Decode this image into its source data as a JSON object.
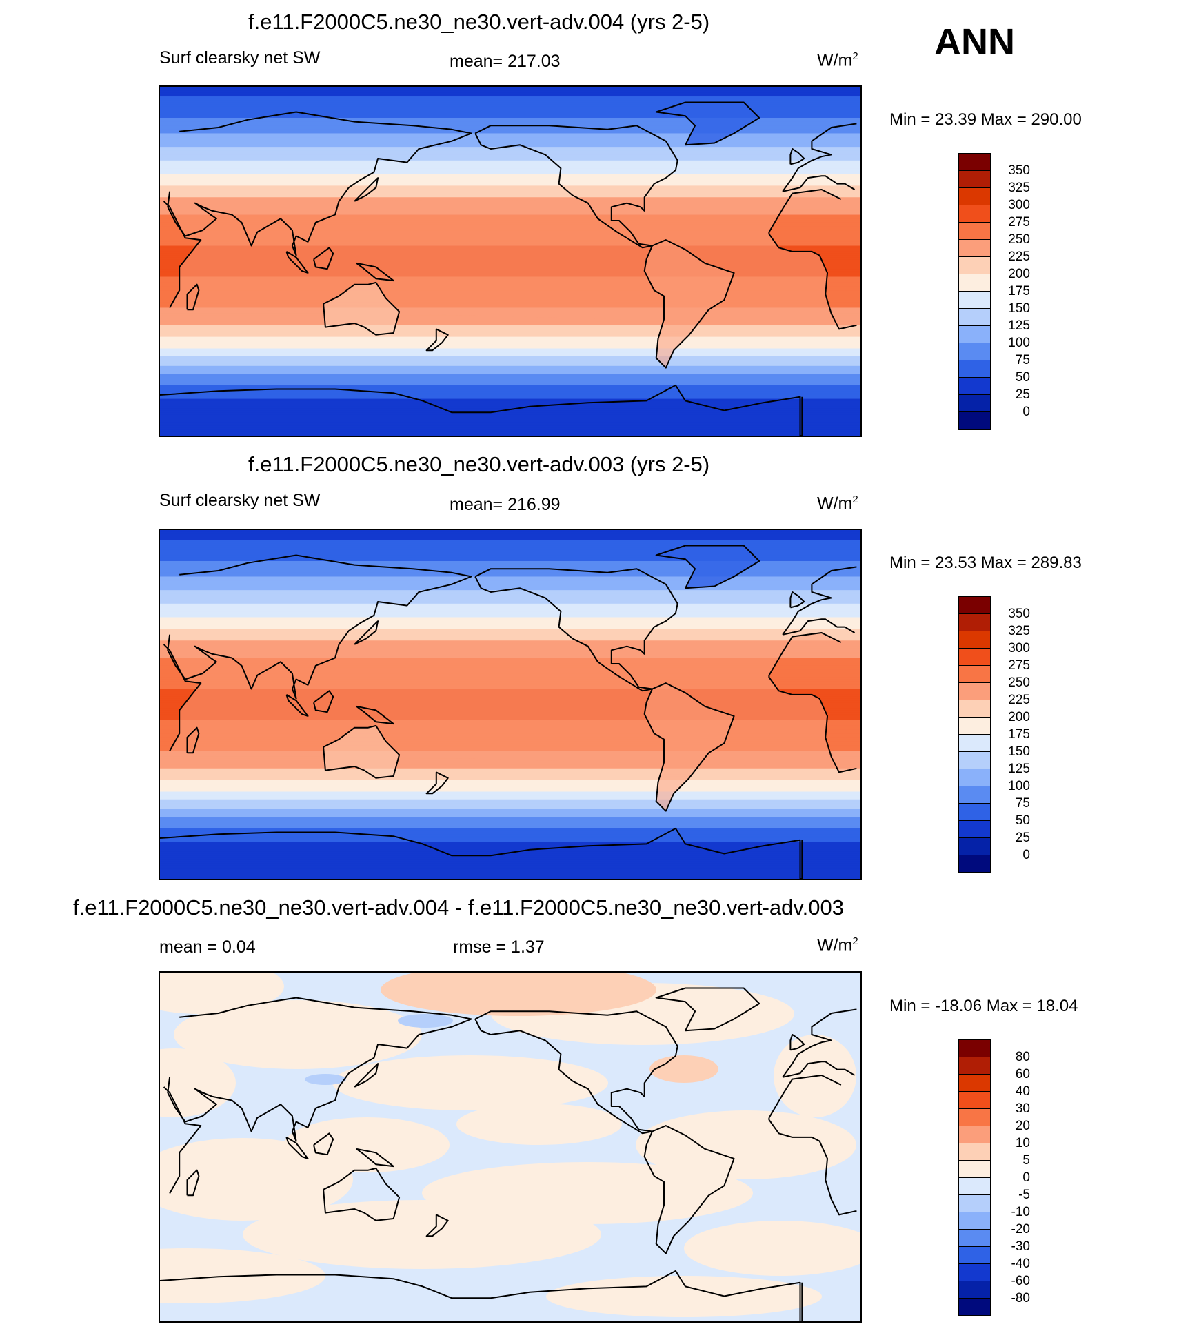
{
  "header": {
    "season": "ANN"
  },
  "panels": [
    {
      "title": "f.e11.F2000C5.ne30_ne30.vert-adv.004 (yrs 2-5)",
      "left_label": "Surf clearsky net SW",
      "mid_label": "mean= 217.03",
      "units": "W/m",
      "units_sup": "2",
      "minmax": "Min =  23.39 Max = 290.00",
      "colorbar": "abs"
    },
    {
      "title": "f.e11.F2000C5.ne30_ne30.vert-adv.003 (yrs 2-5)",
      "left_label": "Surf clearsky net SW",
      "mid_label": "mean= 216.99",
      "units": "W/m",
      "units_sup": "2",
      "minmax": "Min =  23.53 Max = 289.83",
      "colorbar": "abs"
    },
    {
      "title": "f.e11.F2000C5.ne30_ne30.vert-adv.004 - f.e11.F2000C5.ne30_ne30.vert-adv.003",
      "left_label": "mean =   0.04",
      "mid_label": "rmse =   1.37",
      "units": "W/m",
      "units_sup": "2",
      "minmax": "Min = -18.06 Max =  18.04",
      "colorbar": "diff"
    }
  ],
  "colorbars": {
    "abs": {
      "levels": [
        "350",
        "325",
        "300",
        "275",
        "250",
        "225",
        "200",
        "175",
        "150",
        "125",
        "100",
        "75",
        "50",
        "25",
        "0"
      ],
      "colors": [
        "#7a0000",
        "#b01e05",
        "#db3800",
        "#f04f1b",
        "#f87545",
        "#fb9e7b",
        "#fdd0b6",
        "#fdeee0",
        "#dbe9fc",
        "#b5cffb",
        "#8ab1fa",
        "#5a8bf2",
        "#2f62e6",
        "#1339cf",
        "#0522a8",
        "#000a7d"
      ]
    },
    "diff": {
      "levels": [
        "80",
        "60",
        "40",
        "30",
        "20",
        "10",
        "5",
        "0",
        "-5",
        "-10",
        "-20",
        "-30",
        "-40",
        "-60",
        "-80"
      ],
      "colors": [
        "#7a0000",
        "#b01e05",
        "#db3800",
        "#f04f1b",
        "#f87545",
        "#fb9e7b",
        "#fdd0b6",
        "#fdeee0",
        "#dbe9fc",
        "#b5cffb",
        "#8ab1fa",
        "#5a8bf2",
        "#2f62e6",
        "#1339cf",
        "#0522a8",
        "#000a7d"
      ]
    }
  },
  "chart_data": [
    {
      "type": "heatmap",
      "title": "f.e11.F2000C5.ne30_ne30.vert-adv.004 (yrs 2-5)",
      "variable": "Surf clearsky net SW",
      "units": "W/m2",
      "mean": 217.03,
      "min": 23.39,
      "max": 290.0,
      "projection": "cylindrical equidistant, centered 180",
      "contour_levels": [
        0,
        25,
        50,
        75,
        100,
        125,
        150,
        175,
        200,
        225,
        250,
        275,
        300,
        325,
        350
      ],
      "zonal_profile": [
        {
          "lat": 90,
          "value": 40
        },
        {
          "lat": 75,
          "value": 70
        },
        {
          "lat": 60,
          "value": 120
        },
        {
          "lat": 45,
          "value": 175
        },
        {
          "lat": 30,
          "value": 235
        },
        {
          "lat": 15,
          "value": 270
        },
        {
          "lat": 0,
          "value": 280
        },
        {
          "lat": -15,
          "value": 270
        },
        {
          "lat": -30,
          "value": 235
        },
        {
          "lat": -45,
          "value": 175
        },
        {
          "lat": -60,
          "value": 90
        },
        {
          "lat": -75,
          "value": 35
        },
        {
          "lat": -90,
          "value": 25
        }
      ]
    },
    {
      "type": "heatmap",
      "title": "f.e11.F2000C5.ne30_ne30.vert-adv.003 (yrs 2-5)",
      "variable": "Surf clearsky net SW",
      "units": "W/m2",
      "mean": 216.99,
      "min": 23.53,
      "max": 289.83,
      "projection": "cylindrical equidistant, centered 180",
      "contour_levels": [
        0,
        25,
        50,
        75,
        100,
        125,
        150,
        175,
        200,
        225,
        250,
        275,
        300,
        325,
        350
      ],
      "zonal_profile": [
        {
          "lat": 90,
          "value": 40
        },
        {
          "lat": 75,
          "value": 70
        },
        {
          "lat": 60,
          "value": 120
        },
        {
          "lat": 45,
          "value": 175
        },
        {
          "lat": 30,
          "value": 235
        },
        {
          "lat": 15,
          "value": 270
        },
        {
          "lat": 0,
          "value": 280
        },
        {
          "lat": -15,
          "value": 270
        },
        {
          "lat": -30,
          "value": 235
        },
        {
          "lat": -45,
          "value": 175
        },
        {
          "lat": -60,
          "value": 90
        },
        {
          "lat": -75,
          "value": 35
        },
        {
          "lat": -90,
          "value": 25
        }
      ]
    },
    {
      "type": "heatmap",
      "title": "f.e11.F2000C5.ne30_ne30.vert-adv.004 - f.e11.F2000C5.ne30_ne30.vert-adv.003",
      "variable": "Surf clearsky net SW difference",
      "units": "W/m2",
      "mean": 0.04,
      "rmse": 1.37,
      "min": -18.06,
      "max": 18.04,
      "contour_levels": [
        -80,
        -60,
        -40,
        -30,
        -20,
        -10,
        -5,
        0,
        5,
        10,
        20,
        30,
        40,
        60,
        80
      ]
    }
  ]
}
